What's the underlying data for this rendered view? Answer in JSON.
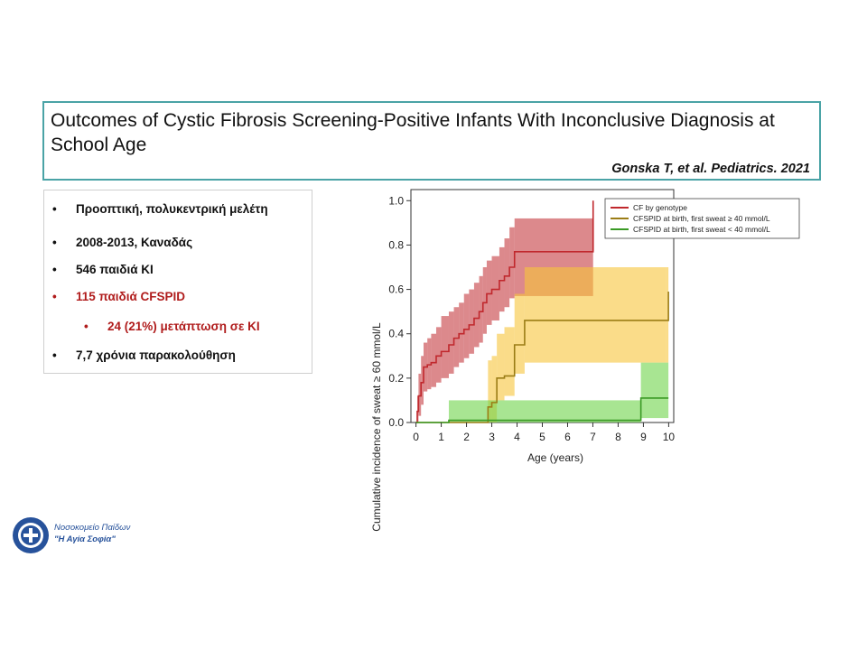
{
  "title": {
    "text": "Outcomes of Cystic Fibrosis Screening-Positive Infants With Inconclusive Diagnosis at School Age",
    "citation": "Gonska T, et al. Pediatrics. 2021"
  },
  "bullets": {
    "items": [
      {
        "text": "Προοπτική, πολυκεντρική μελέτη",
        "color": "#111111"
      },
      {
        "text": "2008-2013, Καναδάς",
        "color": "#111111"
      },
      {
        "text": "546 παιδιά ΚΙ",
        "color": "#111111"
      },
      {
        "text": "115 παιδιά CFSPID",
        "color": "#b01c1c"
      },
      {
        "text": "24 (21%) μετάπτωση σε ΚΙ",
        "color": "#b01c1c"
      },
      {
        "text": "7,7 χρόνια παρακολούθηση",
        "color": "#111111"
      }
    ],
    "glyph": "•"
  },
  "chart_data": {
    "type": "line",
    "title": "",
    "xlabel": "Age (years)",
    "ylabel": "Cumulative incidence of sweat ≥ 60 mmol/L",
    "xlim": [
      -0.2,
      10.2
    ],
    "ylim": [
      0,
      1.05
    ],
    "x_ticks": [
      0,
      1,
      2,
      3,
      4,
      5,
      6,
      7,
      8,
      9,
      10
    ],
    "y_ticks": [
      0.0,
      0.2,
      0.4,
      0.6,
      0.8,
      1.0
    ],
    "y_tick_labels": [
      "0.0",
      "0.2",
      "0.4",
      "0.6",
      "0.8",
      "1.0"
    ],
    "grid": false,
    "legend_position": "top-right",
    "series": [
      {
        "name": "CF by genotype",
        "color": "#c0282d",
        "band_color": "#c0282d",
        "step_x": [
          0,
          0.05,
          0.1,
          0.2,
          0.3,
          0.45,
          0.6,
          0.8,
          1.0,
          1.3,
          1.5,
          1.7,
          1.9,
          2.1,
          2.3,
          2.5,
          2.65,
          2.8,
          3.0,
          3.3,
          3.5,
          3.7,
          3.9,
          7.0,
          7.01
        ],
        "step_y": [
          0,
          0.05,
          0.12,
          0.18,
          0.25,
          0.26,
          0.27,
          0.3,
          0.32,
          0.35,
          0.38,
          0.4,
          0.42,
          0.44,
          0.47,
          0.5,
          0.54,
          0.58,
          0.6,
          0.64,
          0.66,
          0.7,
          0.77,
          0.77,
          1.0
        ],
        "lower": [
          0,
          0.0,
          0.03,
          0.08,
          0.14,
          0.15,
          0.16,
          0.18,
          0.2,
          0.22,
          0.25,
          0.27,
          0.29,
          0.31,
          0.34,
          0.36,
          0.4,
          0.44,
          0.46,
          0.5,
          0.52,
          0.56,
          0.57,
          0.57,
          0.57
        ],
        "upper": [
          0,
          0.12,
          0.22,
          0.3,
          0.36,
          0.38,
          0.4,
          0.43,
          0.48,
          0.5,
          0.52,
          0.54,
          0.58,
          0.6,
          0.63,
          0.66,
          0.7,
          0.73,
          0.75,
          0.79,
          0.83,
          0.88,
          0.92,
          0.92,
          0.92
        ]
      },
      {
        "name": "CFSPID at birth, first sweat ≥ 40 mmol/L",
        "color": "#9b7d16",
        "band_color": "#f7c43a",
        "step_x": [
          0,
          2.85,
          3.0,
          3.2,
          3.5,
          3.9,
          4.3,
          9.9,
          9.99
        ],
        "step_y": [
          0,
          0.07,
          0.09,
          0.2,
          0.21,
          0.35,
          0.46,
          0.46,
          0.59
        ],
        "lower": [
          0,
          0.0,
          0.0,
          0.1,
          0.12,
          0.22,
          0.27,
          0.27,
          0.27
        ],
        "upper": [
          0,
          0.28,
          0.3,
          0.4,
          0.43,
          0.58,
          0.7,
          0.7,
          0.7
        ]
      },
      {
        "name": "CFSPID at birth, first sweat < 40 mmol/L",
        "color": "#3a9a25",
        "band_color": "#6ed34a",
        "step_x": [
          0,
          1.3,
          8.9,
          9.99
        ],
        "step_y": [
          0,
          0.01,
          0.11,
          0.11
        ],
        "lower": [
          0,
          0.0,
          0.02,
          0.02
        ],
        "upper": [
          0,
          0.1,
          0.27,
          0.27
        ]
      }
    ]
  },
  "logo": {
    "line1": "Νοσοκομείο Παίδων",
    "line2": "\"Η Αγία Σοφία\"",
    "color": "#27529b"
  }
}
